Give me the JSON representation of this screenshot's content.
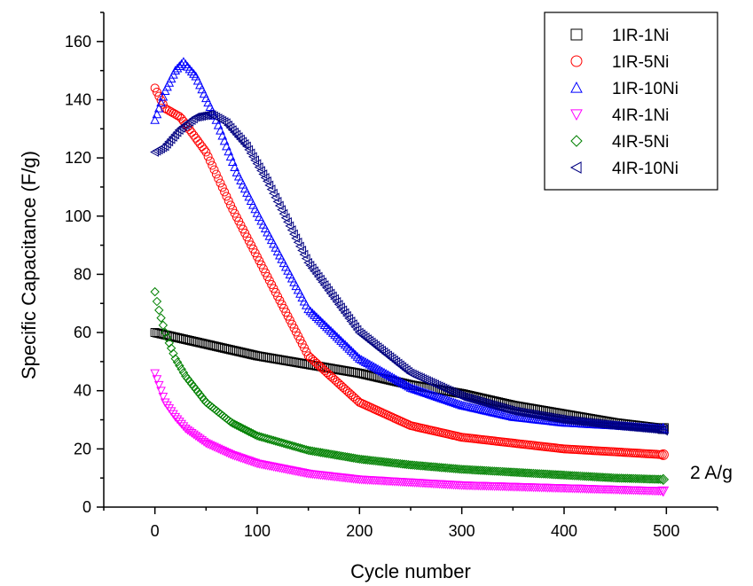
{
  "chart_data": {
    "type": "scatter",
    "xlabel": "Cycle number",
    "ylabel": "Specific Capacitance (F/g)",
    "xlim": [
      -50,
      550
    ],
    "ylim": [
      0,
      170
    ],
    "xticks": [
      0,
      100,
      200,
      300,
      400,
      500
    ],
    "yticks": [
      0,
      20,
      40,
      60,
      80,
      100,
      120,
      140,
      160
    ],
    "x_tick_labels": [
      "0",
      "100",
      "200",
      "300",
      "400",
      "500"
    ],
    "y_tick_labels": [
      "0",
      "20",
      "40",
      "60",
      "80",
      "100",
      "120",
      "140",
      "160"
    ],
    "grid": false,
    "legend_position": "top-right",
    "annotation": "2 A/g",
    "series": [
      {
        "name": "1IR-1Ni",
        "marker": "square",
        "color": "#000000",
        "x": [
          0,
          50,
          100,
          150,
          200,
          250,
          300,
          350,
          400,
          450,
          497
        ],
        "values": [
          60,
          56,
          52,
          49,
          46,
          42,
          39,
          35,
          32,
          29,
          27
        ]
      },
      {
        "name": "1IR-5Ni",
        "marker": "circle",
        "color": "#ff0000",
        "x": [
          0,
          10,
          25,
          50,
          75,
          100,
          150,
          200,
          250,
          300,
          350,
          400,
          450,
          497
        ],
        "values": [
          144,
          137,
          134,
          122,
          103,
          86,
          52,
          36,
          28,
          24,
          22,
          20,
          19,
          18
        ]
      },
      {
        "name": "1IR-10Ni",
        "marker": "triangle-up",
        "color": "#0000ff",
        "x": [
          0,
          10,
          20,
          28,
          40,
          60,
          80,
          100,
          150,
          200,
          250,
          300,
          350,
          400,
          450,
          497
        ],
        "values": [
          133,
          143,
          150,
          153,
          148,
          133,
          115,
          101,
          68,
          51,
          41,
          35,
          31,
          29,
          28,
          27
        ]
      },
      {
        "name": "4IR-1Ni",
        "marker": "triangle-down",
        "color": "#ff00ff",
        "x": [
          0,
          5,
          10,
          20,
          30,
          50,
          75,
          100,
          150,
          200,
          250,
          300,
          350,
          400,
          450,
          497
        ],
        "values": [
          46,
          41,
          36,
          31,
          27,
          22,
          18,
          15,
          11.5,
          9.5,
          8.5,
          7.5,
          7,
          6.5,
          6,
          5.5
        ]
      },
      {
        "name": "4IR-5Ni",
        "marker": "diamond",
        "color": "#008000",
        "x": [
          0,
          3,
          6,
          10,
          20,
          30,
          50,
          75,
          100,
          150,
          200,
          250,
          300,
          350,
          400,
          450,
          497
        ],
        "values": [
          74,
          69,
          65,
          60,
          51,
          45,
          36,
          29,
          24.5,
          19.5,
          16.5,
          14.5,
          13,
          12,
          11,
          10,
          9.5
        ]
      },
      {
        "name": "4IR-10Ni",
        "marker": "triangle-left",
        "color": "#000080",
        "x": [
          0,
          10,
          25,
          40,
          55,
          70,
          90,
          110,
          150,
          200,
          250,
          300,
          350,
          400,
          450,
          497
        ],
        "values": [
          122,
          124,
          130,
          134,
          135,
          132,
          124,
          112,
          84,
          60,
          46,
          38,
          33,
          30,
          28,
          26.5
        ]
      }
    ]
  }
}
